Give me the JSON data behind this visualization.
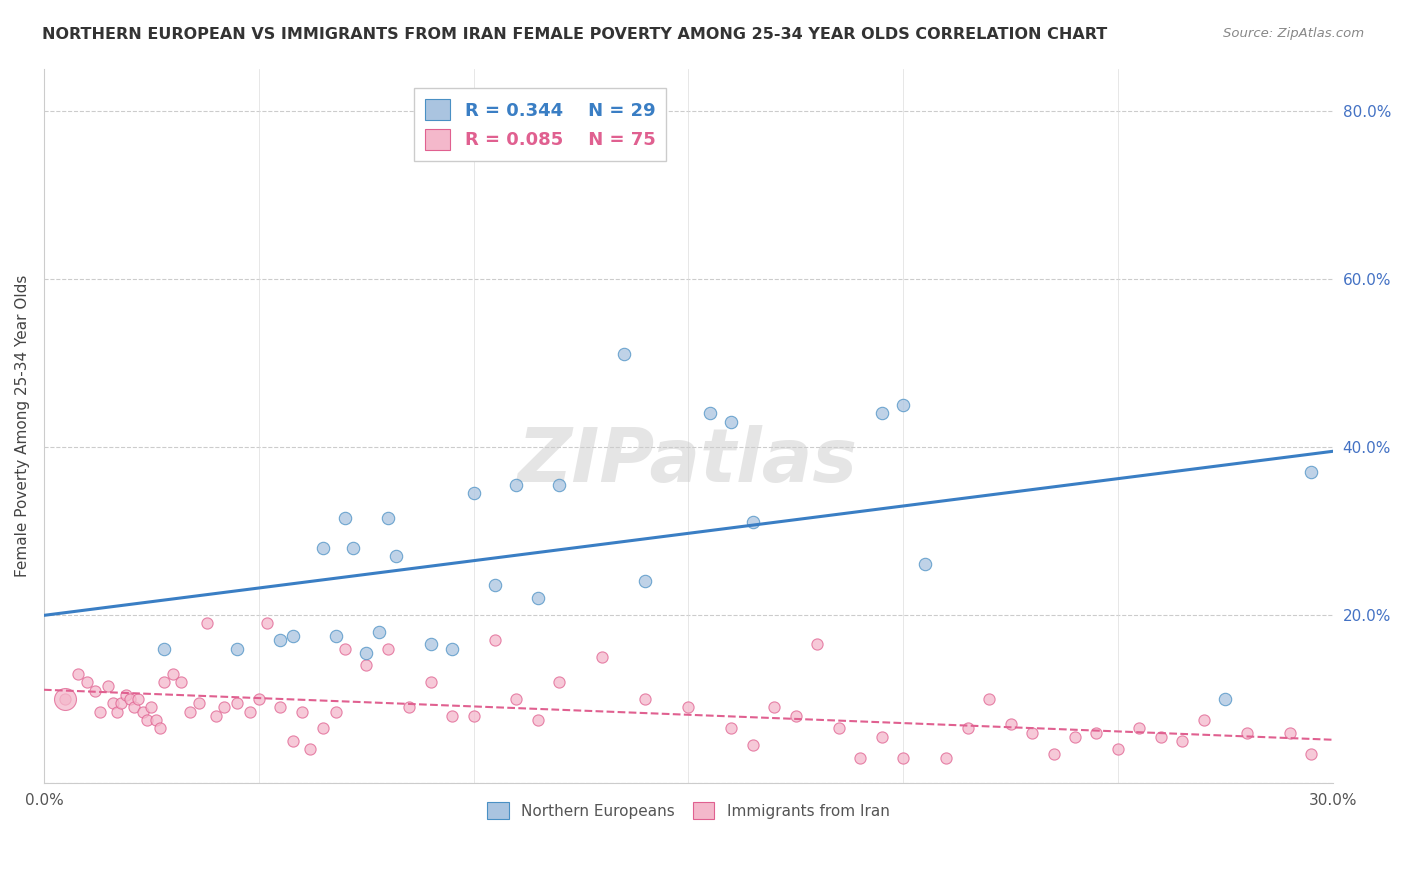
{
  "title": "NORTHERN EUROPEAN VS IMMIGRANTS FROM IRAN FEMALE POVERTY AMONG 25-34 YEAR OLDS CORRELATION CHART",
  "source": "Source: ZipAtlas.com",
  "ylabel": "Female Poverty Among 25-34 Year Olds",
  "xlim": [
    0.0,
    0.3
  ],
  "ylim": [
    0.0,
    0.85
  ],
  "x_ticks": [
    0.0,
    0.05,
    0.1,
    0.15,
    0.2,
    0.25,
    0.3
  ],
  "x_tick_labels": [
    "0.0%",
    "",
    "",
    "",
    "",
    "",
    "30.0%"
  ],
  "y_ticks_right": [
    0.0,
    0.2,
    0.4,
    0.6,
    0.8
  ],
  "y_tick_labels_right": [
    "",
    "20.0%",
    "40.0%",
    "60.0%",
    "80.0%"
  ],
  "blue_color": "#aac4e0",
  "pink_color": "#f4b8cb",
  "blue_edge_color": "#4a90c4",
  "pink_edge_color": "#e06090",
  "blue_line_color": "#3a7ec4",
  "pink_line_color": "#e06090",
  "watermark": "ZIPatlas",
  "legend_R1": "R = 0.344",
  "legend_N1": "N = 29",
  "legend_R2": "R = 0.085",
  "legend_N2": "N = 75",
  "blue_scatter_x": [
    0.028,
    0.045,
    0.055,
    0.058,
    0.065,
    0.068,
    0.07,
    0.072,
    0.075,
    0.078,
    0.08,
    0.082,
    0.09,
    0.095,
    0.1,
    0.105,
    0.11,
    0.115,
    0.12,
    0.135,
    0.14,
    0.155,
    0.16,
    0.165,
    0.195,
    0.2,
    0.205,
    0.275,
    0.295
  ],
  "blue_scatter_y": [
    0.16,
    0.16,
    0.17,
    0.175,
    0.28,
    0.175,
    0.315,
    0.28,
    0.155,
    0.18,
    0.315,
    0.27,
    0.165,
    0.16,
    0.345,
    0.235,
    0.355,
    0.22,
    0.355,
    0.51,
    0.24,
    0.44,
    0.43,
    0.31,
    0.44,
    0.45,
    0.26,
    0.1,
    0.37
  ],
  "pink_scatter_x": [
    0.005,
    0.008,
    0.01,
    0.012,
    0.013,
    0.015,
    0.016,
    0.017,
    0.018,
    0.019,
    0.02,
    0.021,
    0.022,
    0.023,
    0.024,
    0.025,
    0.026,
    0.027,
    0.028,
    0.03,
    0.032,
    0.034,
    0.036,
    0.038,
    0.04,
    0.042,
    0.045,
    0.048,
    0.05,
    0.052,
    0.055,
    0.058,
    0.06,
    0.062,
    0.065,
    0.068,
    0.07,
    0.075,
    0.08,
    0.085,
    0.09,
    0.095,
    0.1,
    0.105,
    0.11,
    0.115,
    0.12,
    0.13,
    0.14,
    0.15,
    0.16,
    0.165,
    0.17,
    0.175,
    0.18,
    0.185,
    0.19,
    0.195,
    0.2,
    0.21,
    0.215,
    0.22,
    0.225,
    0.23,
    0.235,
    0.24,
    0.245,
    0.25,
    0.255,
    0.26,
    0.265,
    0.27,
    0.28,
    0.29,
    0.295
  ],
  "pink_scatter_y": [
    0.1,
    0.13,
    0.12,
    0.11,
    0.085,
    0.115,
    0.095,
    0.085,
    0.095,
    0.105,
    0.1,
    0.09,
    0.1,
    0.085,
    0.075,
    0.09,
    0.075,
    0.065,
    0.12,
    0.13,
    0.12,
    0.085,
    0.095,
    0.19,
    0.08,
    0.09,
    0.095,
    0.085,
    0.1,
    0.19,
    0.09,
    0.05,
    0.085,
    0.04,
    0.065,
    0.085,
    0.16,
    0.14,
    0.16,
    0.09,
    0.12,
    0.08,
    0.08,
    0.17,
    0.1,
    0.075,
    0.12,
    0.15,
    0.1,
    0.09,
    0.065,
    0.045,
    0.09,
    0.08,
    0.165,
    0.065,
    0.03,
    0.055,
    0.03,
    0.03,
    0.065,
    0.1,
    0.07,
    0.06,
    0.035,
    0.055,
    0.06,
    0.04,
    0.065,
    0.055,
    0.05,
    0.075,
    0.06,
    0.06,
    0.035
  ]
}
